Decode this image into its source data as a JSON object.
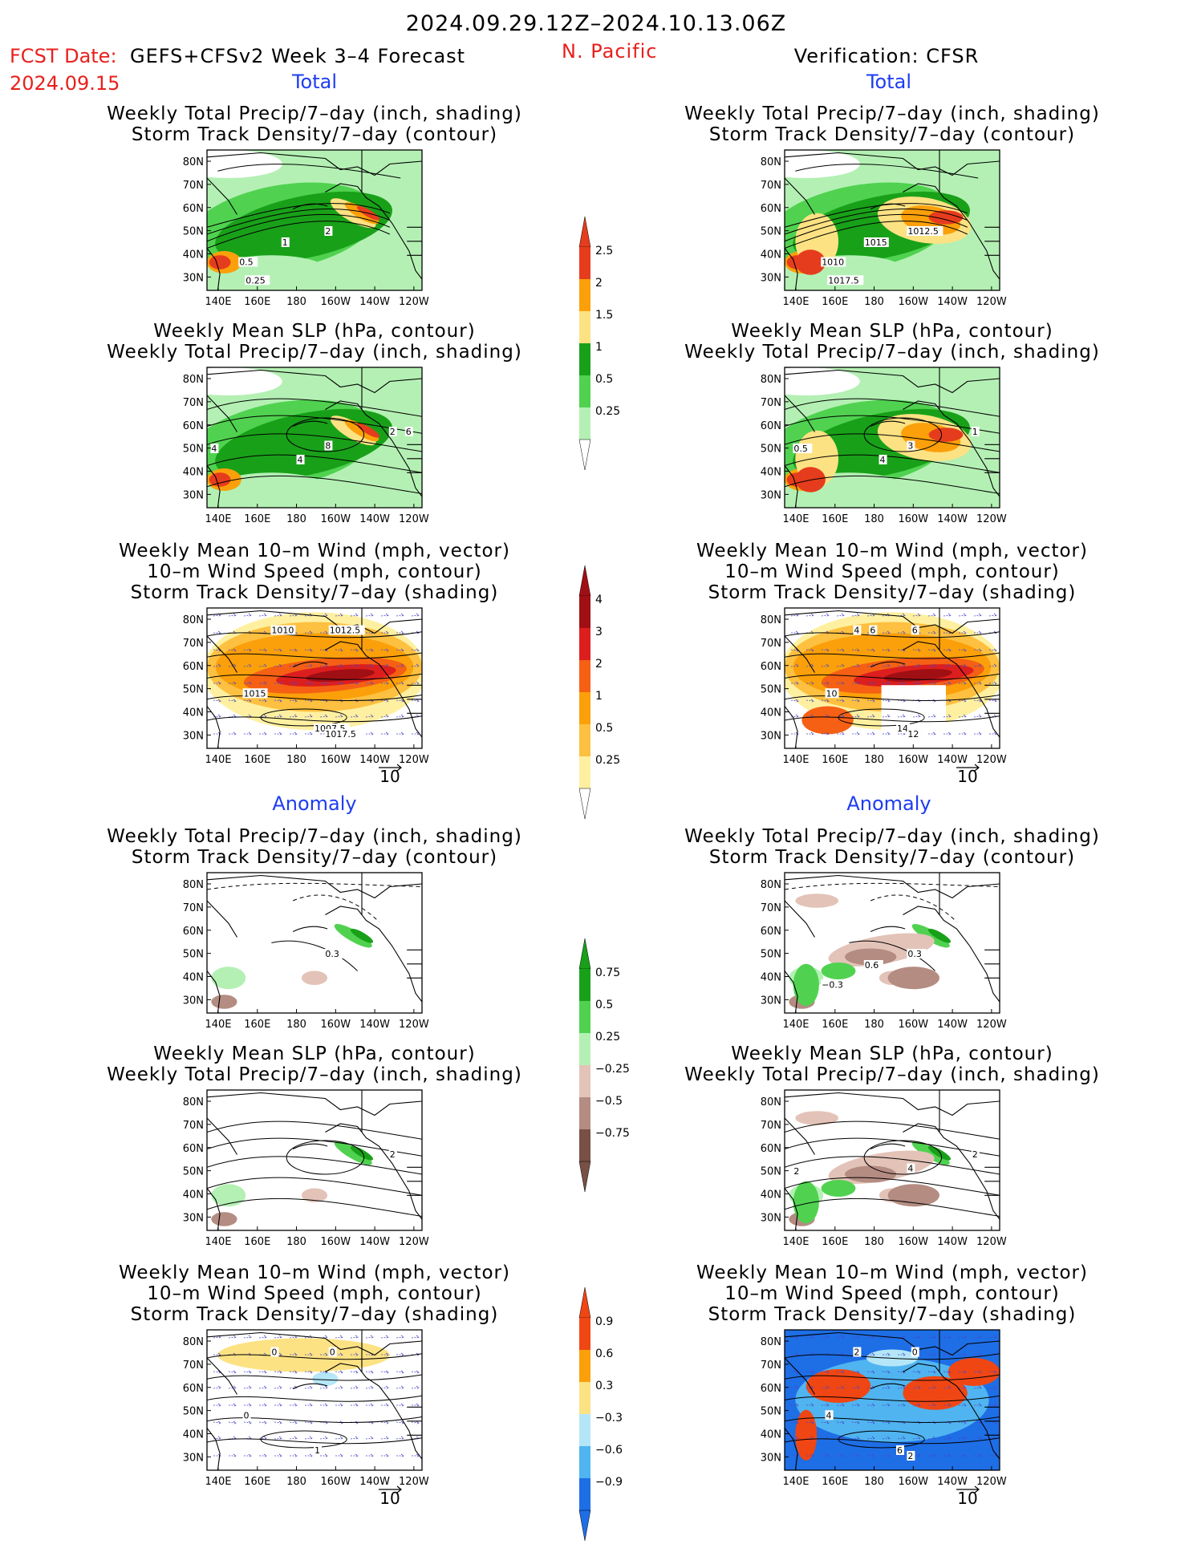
{
  "header": {
    "date_range": "2024.09.29.12Z–2024.10.13.06Z",
    "fcst_label": "FCST Date:",
    "fcst_model": "GEFS+CFSv2 Week 3–4 Forecast",
    "fcst_date": "2024.09.15",
    "region": "N. Pacific",
    "verification": "Verification: CFSR"
  },
  "sections": {
    "total": "Total",
    "anomaly": "Anomaly"
  },
  "titles": {
    "precip_std_1": "Weekly Total Precip/7–day (inch, shading)",
    "precip_std_2": "Storm Track Density/7–day (contour)",
    "slp_1": "Weekly Mean SLP (hPa, contour)",
    "slp_2": "Weekly Total Precip/7–day (inch, shading)",
    "wind_1": "Weekly Mean 10–m Wind (mph, vector)",
    "wind_2": "10–m Wind Speed (mph, contour)",
    "wind_3": "Storm Track Density/7–day (shading)"
  },
  "axes": {
    "lon_labels": [
      "140E",
      "160E",
      "180",
      "160W",
      "140W",
      "120W"
    ],
    "lat_labels": [
      "80N",
      "70N",
      "60N",
      "50N",
      "40N",
      "30N"
    ]
  },
  "vector_ref": "10",
  "colorbars": {
    "precip_total": {
      "labels": [
        "2.5",
        "2",
        "1.5",
        "1",
        "0.5",
        "0.25"
      ],
      "colors": [
        "#e63c1e",
        "#fba00a",
        "#fde283",
        "#19a019",
        "#50d250",
        "#b4f0b4"
      ]
    },
    "std_total": {
      "labels": [
        "4",
        "3",
        "2",
        "1",
        "0.5",
        "0.25"
      ],
      "colors": [
        "#a00f14",
        "#dc1e1e",
        "#f56014",
        "#fba00a",
        "#fdc040",
        "#fef0a0"
      ]
    },
    "precip_anom": {
      "labels": [
        "0.75",
        "0.5",
        "0.25",
        "−0.25",
        "−0.5",
        "−0.75"
      ],
      "colors": [
        "#19a019",
        "#50d250",
        "#b4f0b4",
        "#e3c3b8",
        "#b48c82",
        "#785046"
      ]
    },
    "std_anom": {
      "labels": [
        "0.9",
        "0.6",
        "0.3",
        "−0.3",
        "−0.6",
        "−0.9"
      ],
      "colors": [
        "#f04614",
        "#fba00a",
        "#fde283",
        "#b4e6f8",
        "#50b4f0",
        "#1e6ee6"
      ]
    }
  },
  "contour_labels": {
    "p1": [
      "2",
      "1",
      "0.5",
      "0.25"
    ],
    "p2": [
      "1012.5",
      "1015",
      "1010",
      "1017.5"
    ],
    "p3": [
      "2",
      "4",
      "8",
      "4",
      "6"
    ],
    "p4": [
      "1",
      "0.5",
      "3",
      "4"
    ],
    "p5": [
      "1010",
      "1012.5",
      "1015",
      "1007.5",
      "1017.5"
    ],
    "p6": [
      "4",
      "6",
      "10",
      "14",
      "12",
      "6"
    ],
    "p7": [
      "0.3"
    ],
    "p8": [
      "0.3",
      "0.6",
      "−0.3"
    ],
    "p9": [
      "2"
    ],
    "p10": [
      "2",
      "2",
      "4"
    ],
    "p11": [
      "0",
      "0",
      "0",
      "1"
    ],
    "p12": [
      "2",
      "0",
      "4",
      "6",
      "2"
    ]
  }
}
